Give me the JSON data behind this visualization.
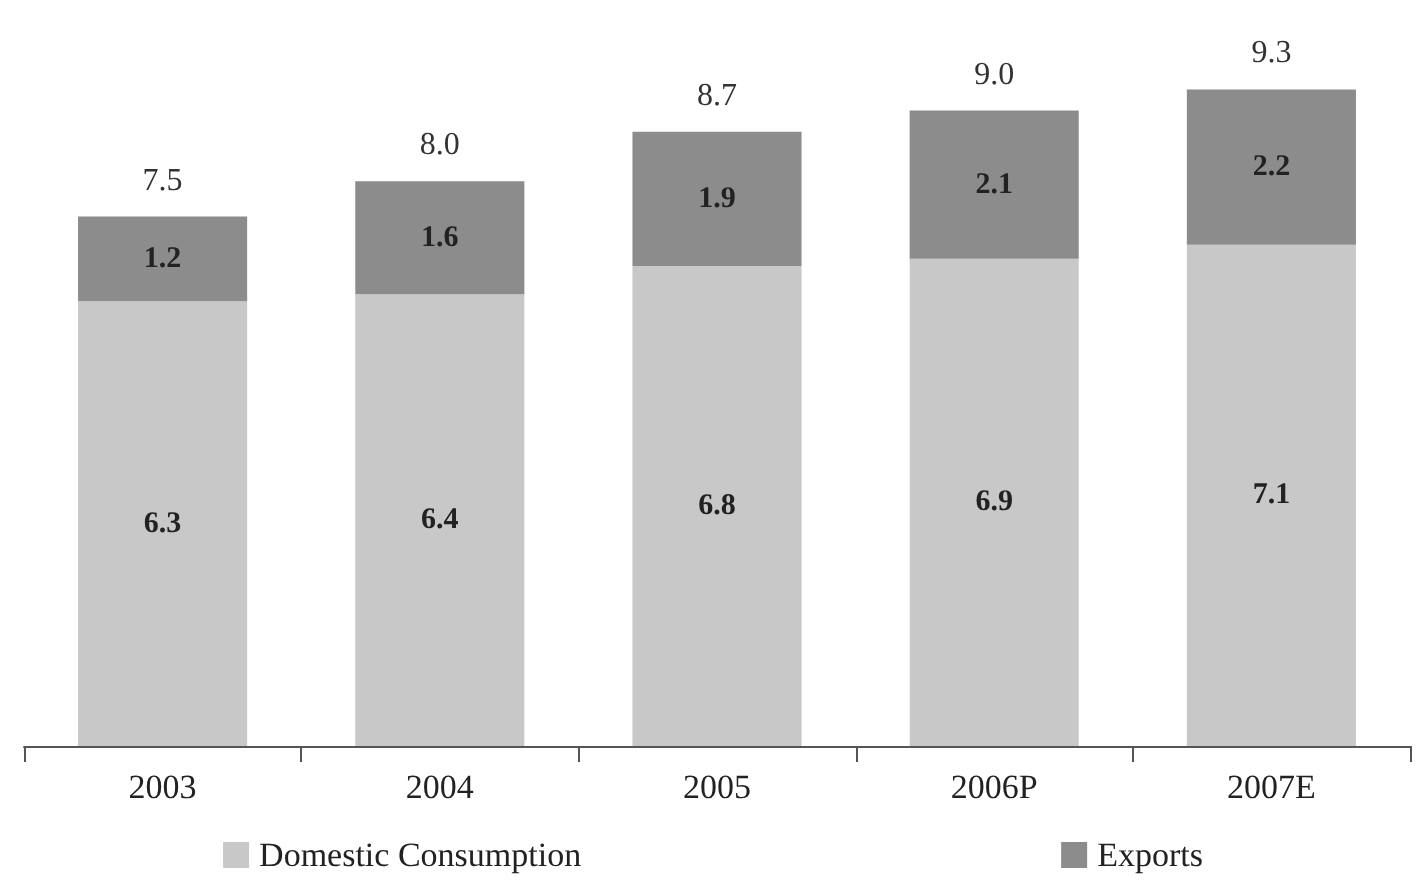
{
  "chart_data": {
    "type": "bar",
    "stacked": true,
    "categories": [
      "2003",
      "2004",
      "2005",
      "2006P",
      "2007E"
    ],
    "series": [
      {
        "name": "Domestic Consumption",
        "color": "#c8c8c8",
        "values": [
          6.3,
          6.4,
          6.8,
          6.9,
          7.1
        ]
      },
      {
        "name": "Exports",
        "color": "#8c8c8c",
        "values": [
          1.2,
          1.6,
          1.9,
          2.1,
          2.2
        ]
      }
    ],
    "totals": [
      "7.5",
      "8.0",
      "8.7",
      "9.0",
      "9.3"
    ],
    "data_labels": true,
    "legend": "bottom"
  }
}
